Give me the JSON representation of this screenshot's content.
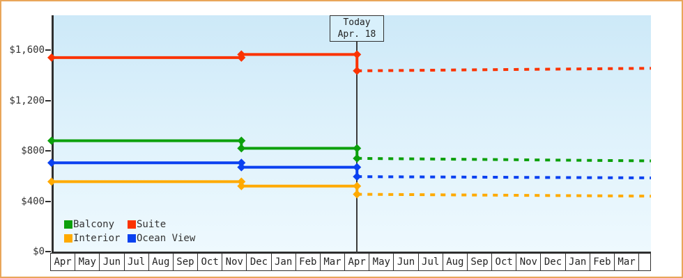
{
  "today_box": {
    "line1": "Today",
    "line2": "Apr. 18"
  },
  "chart_data": {
    "type": "line",
    "title": "",
    "xlabel": "",
    "ylabel": "",
    "ylim": [
      0,
      1880
    ],
    "grid": false,
    "legend_position": "bottom-left-inside",
    "x_unit": "month index (0 = first Apr, 24 = end of second Mar)",
    "today_x": 12.23,
    "x_axis": {
      "months": [
        "Apr",
        "May",
        "Jun",
        "Jul",
        "Aug",
        "Sep",
        "Oct",
        "Nov",
        "Dec",
        "Jan",
        "Feb",
        "Mar",
        "Apr",
        "May",
        "Jun",
        "Jul",
        "Aug",
        "Sep",
        "Oct",
        "Nov",
        "Dec",
        "Jan",
        "Feb",
        "Mar"
      ]
    },
    "y_axis": {
      "ticks": [
        {
          "label": "$1,600",
          "value": 1600
        },
        {
          "label": "$1,200",
          "value": 1200
        },
        {
          "label": "$800",
          "value": 800
        },
        {
          "label": "$400",
          "value": 400
        },
        {
          "label": "$0",
          "value": 0
        }
      ]
    },
    "series": [
      {
        "name": "Balcony",
        "color": "#0ca00c",
        "solid": [
          [
            0,
            880
          ],
          [
            7.6,
            880
          ],
          [
            7.6,
            820
          ],
          [
            12.23,
            820
          ],
          [
            12.23,
            740
          ]
        ],
        "forecast": [
          [
            12.23,
            740
          ],
          [
            24,
            720
          ]
        ]
      },
      {
        "name": "Suite",
        "color": "#fb3300",
        "solid": [
          [
            0,
            1540
          ],
          [
            7.6,
            1540
          ],
          [
            7.6,
            1565
          ],
          [
            12.23,
            1565
          ],
          [
            12.23,
            1435
          ]
        ],
        "forecast": [
          [
            12.23,
            1435
          ],
          [
            24,
            1455
          ]
        ]
      },
      {
        "name": "Interior",
        "color": "#ffaa00",
        "solid": [
          [
            0,
            555
          ],
          [
            7.6,
            555
          ],
          [
            7.6,
            520
          ],
          [
            12.23,
            520
          ],
          [
            12.23,
            455
          ]
        ],
        "forecast": [
          [
            12.23,
            455
          ],
          [
            24,
            440
          ]
        ]
      },
      {
        "name": "Ocean View",
        "color": "#0a41f0",
        "solid": [
          [
            0,
            705
          ],
          [
            7.6,
            705
          ],
          [
            7.6,
            670
          ],
          [
            12.23,
            670
          ],
          [
            12.23,
            595
          ]
        ],
        "forecast": [
          [
            12.23,
            595
          ],
          [
            24,
            585
          ]
        ]
      }
    ],
    "legend": [
      {
        "label": "Balcony",
        "color": "#0ca00c"
      },
      {
        "label": "Suite",
        "color": "#fb3300"
      },
      {
        "label": "Interior",
        "color": "#ffaa00"
      },
      {
        "label": "Ocean View",
        "color": "#0a41f0"
      }
    ]
  }
}
